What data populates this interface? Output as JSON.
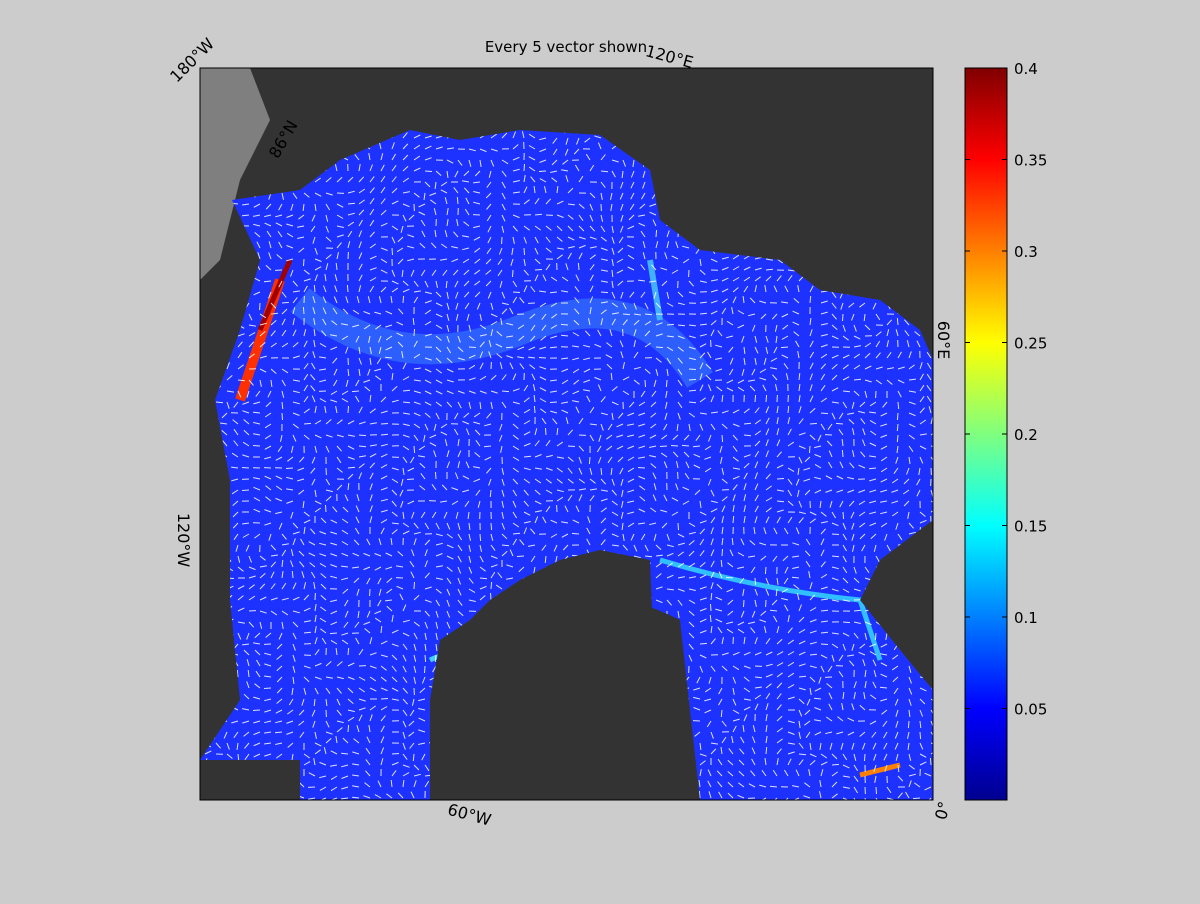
{
  "title": "Every 5 vector shown",
  "colorbar": {
    "lim": [
      0,
      0.4
    ],
    "ticks": [
      0.05,
      0.1,
      0.15,
      0.2,
      0.25,
      0.3,
      0.35,
      0.4
    ]
  },
  "map_labels": {
    "lon_180w": "180°W",
    "lon_120e": "120°E",
    "lon_60e": "60°E",
    "lon_120w": "120°W",
    "lon_60w": "60°W",
    "lon_0": "0°",
    "lat_86n": "86°N"
  }
}
